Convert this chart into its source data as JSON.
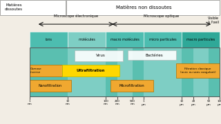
{
  "bg_color": "#f2ede4",
  "teal_light": "#7ecec4",
  "teal_medium": "#40b0a0",
  "teal_dark": "#2a9080",
  "yellow": "#ffd700",
  "orange": "#f0a830",
  "white": "#ffffff",
  "cat_labels": [
    "ions",
    "molécules",
    "macro molécules",
    "micro particules",
    "macro particules"
  ],
  "x_tick_nms": [
    1,
    10,
    100,
    200,
    500,
    1000,
    10000,
    20000,
    50000,
    100000
  ],
  "x_tick_texts": [
    "1\nnm",
    "10\nnm",
    "100\nnm",
    "200\nnm",
    "500\nnm",
    "1\nµm",
    "10\nµm",
    "20\nµm",
    "50\nµm",
    "100\nµm"
  ]
}
